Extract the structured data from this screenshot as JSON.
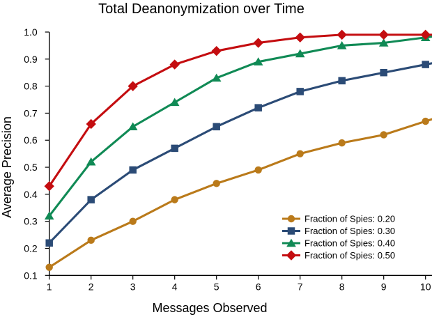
{
  "figure": {
    "background": "#ffffff",
    "text_color": "#000000"
  },
  "chart_data": {
    "type": "line",
    "title": "Total Deanonymization over Time",
    "xlabel": "Messages Observed",
    "ylabel": "Average Precision",
    "xlim": [
      1,
      10
    ],
    "ylim": [
      0.1,
      1.0
    ],
    "grid": false,
    "legend_position": "lower right",
    "x_ticks": [
      1,
      2,
      3,
      4,
      5,
      6,
      7,
      8,
      9,
      10
    ],
    "x_tick_labels": [
      "1",
      "2",
      "3",
      "4",
      "5",
      "6",
      "7",
      "8",
      "9",
      "10"
    ],
    "y_ticks": [
      0.1,
      0.2,
      0.3,
      0.4,
      0.5,
      0.6,
      0.7,
      0.8,
      0.9,
      1.0
    ],
    "y_tick_labels": [
      "0.1",
      "0.2",
      "0.3",
      "0.4",
      "0.5",
      "0.6",
      "0.7",
      "0.8",
      "0.9",
      "1.0"
    ],
    "x": [
      1,
      2,
      3,
      4,
      5,
      6,
      7,
      8,
      9,
      10
    ],
    "series": [
      {
        "name": "Fraction of Spies: 0.20",
        "marker": "circle",
        "color": "#BA7A1A",
        "values": [
          0.13,
          0.23,
          0.3,
          0.38,
          0.44,
          0.49,
          0.55,
          0.59,
          0.62,
          0.67
        ]
      },
      {
        "name": "Fraction of Spies: 0.30",
        "marker": "square",
        "color": "#2B4B76",
        "values": [
          0.22,
          0.38,
          0.49,
          0.57,
          0.65,
          0.72,
          0.78,
          0.82,
          0.85,
          0.88
        ]
      },
      {
        "name": "Fraction of Spies: 0.40",
        "marker": "triangle",
        "color": "#108A55",
        "values": [
          0.32,
          0.52,
          0.65,
          0.74,
          0.83,
          0.89,
          0.92,
          0.95,
          0.96,
          0.98
        ]
      },
      {
        "name": "Fraction of Spies: 0.50",
        "marker": "diamond",
        "color": "#C40D10",
        "values": [
          0.43,
          0.66,
          0.8,
          0.88,
          0.93,
          0.96,
          0.98,
          0.99,
          0.99,
          0.99
        ]
      }
    ]
  }
}
